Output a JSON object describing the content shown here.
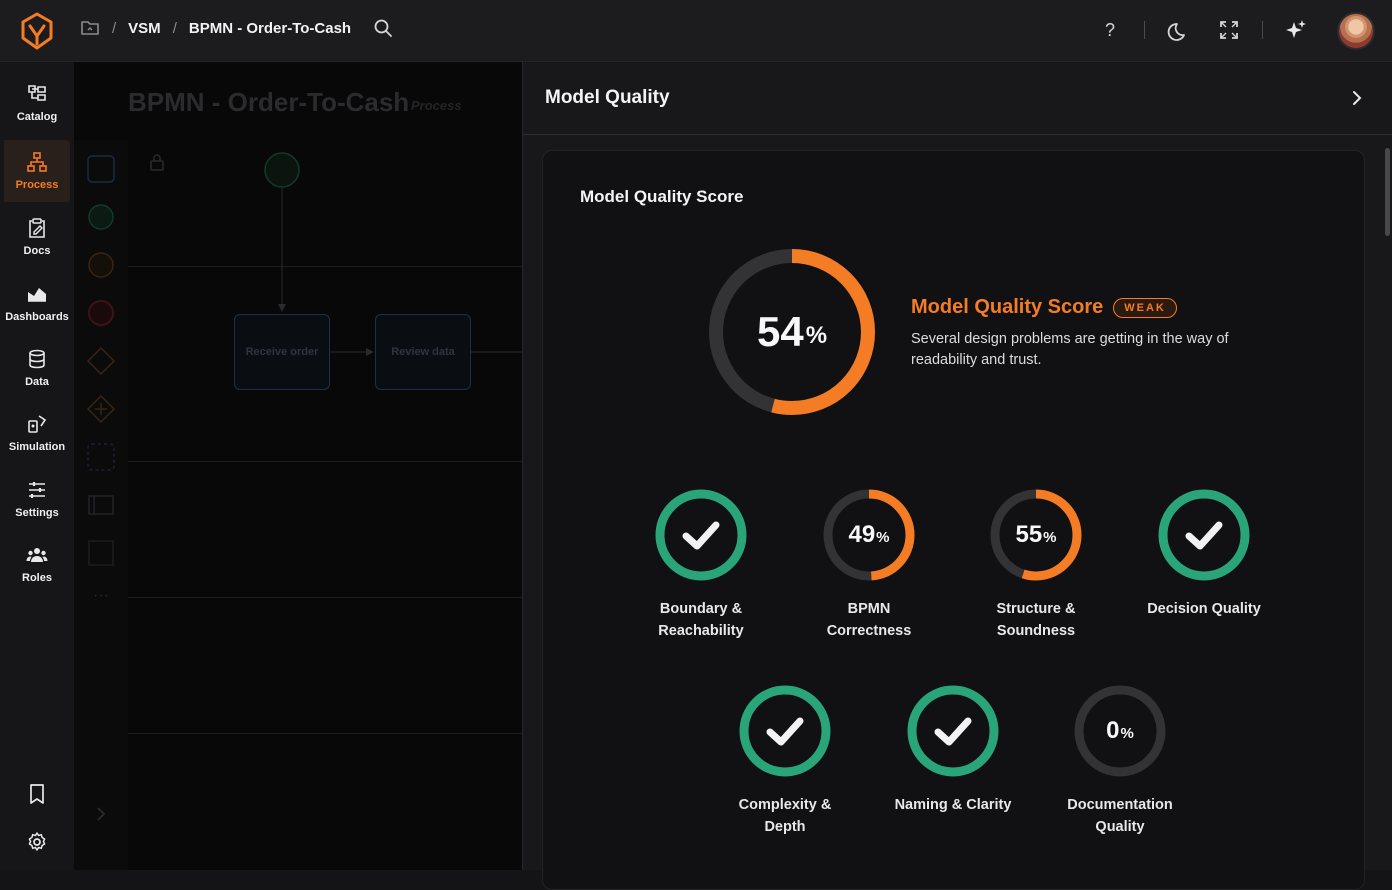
{
  "breadcrumb": {
    "root": "VSM",
    "current": "BPMN - Order-To-Cash"
  },
  "sidebar": {
    "items": [
      {
        "label": "Catalog",
        "icon": "catalog-icon"
      },
      {
        "label": "Process",
        "icon": "process-icon",
        "active": true
      },
      {
        "label": "Docs",
        "icon": "docs-icon"
      },
      {
        "label": "Dashboards",
        "icon": "dashboards-icon"
      },
      {
        "label": "Data",
        "icon": "data-icon"
      },
      {
        "label": "Simulation",
        "icon": "simulation-icon"
      },
      {
        "label": "Settings",
        "icon": "settings-sliders-icon"
      },
      {
        "label": "Roles",
        "icon": "roles-icon"
      }
    ]
  },
  "canvas": {
    "title": "BPMN - Order-To-Cash",
    "subtitle": "Process",
    "tasks": [
      "Receive order",
      "Review data"
    ]
  },
  "panel": {
    "title": "Model Quality",
    "card_title": "Model Quality Score",
    "overall": {
      "value": 54,
      "value_text": "54",
      "pct": "%",
      "name": "Model Quality Score",
      "badge": "WEAK",
      "description": "Several design problems are getting in the way of readability and trust."
    },
    "metrics": [
      {
        "label1": "Boundary &",
        "label2": "Reachability",
        "status": "check"
      },
      {
        "label1": "BPMN",
        "label2": "Correctness",
        "status": "score",
        "value": 49,
        "value_text": "49",
        "pct": "%"
      },
      {
        "label1": "Structure &",
        "label2": "Soundness",
        "status": "score",
        "value": 55,
        "value_text": "55",
        "pct": "%"
      },
      {
        "label1": "Decision Quality",
        "label2": "",
        "status": "check"
      },
      {
        "label1": "Complexity &",
        "label2": "Depth",
        "status": "check"
      },
      {
        "label1": "Naming & Clarity",
        "label2": "",
        "status": "check"
      },
      {
        "label1": "Documentation",
        "label2": "Quality",
        "status": "score",
        "value": 0,
        "value_text": "0",
        "pct": "%"
      }
    ]
  },
  "colors": {
    "accent": "#f47c25",
    "good": "#2aa57a",
    "track": "#333336"
  }
}
